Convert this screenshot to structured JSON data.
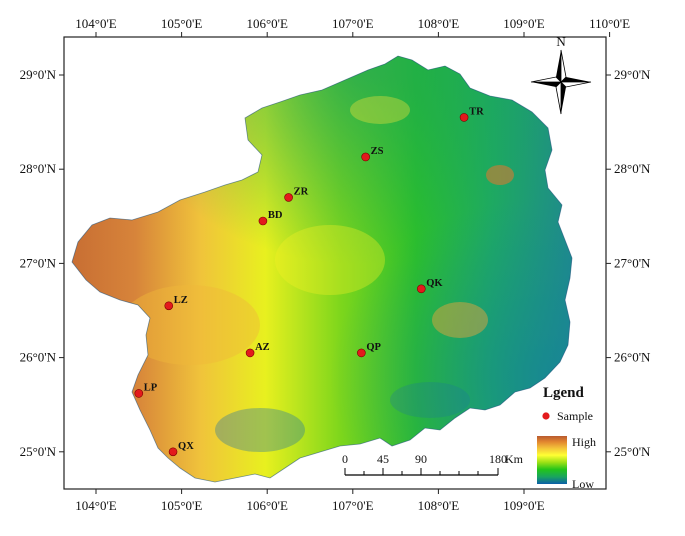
{
  "map": {
    "top_ticks": [
      "104°0'E",
      "105°0'E",
      "106°0'E",
      "107°0'E",
      "108°0'E",
      "109°0'E",
      "110°0'E"
    ],
    "bottom_ticks": [
      "104°0'E",
      "105°0'E",
      "106°0'E",
      "107°0'E",
      "108°0'E",
      "109°0'E"
    ],
    "left_ticks": [
      "29°0'N",
      "28°0'N",
      "27°0'N",
      "26°0'N",
      "25°0'N"
    ],
    "right_ticks": [
      "29°0'N",
      "28°0'N",
      "27°0'N",
      "26°0'N",
      "25°0'N"
    ]
  },
  "samples": [
    {
      "code": "TR",
      "lon": 108.3,
      "lat": 28.55
    },
    {
      "code": "ZS",
      "lon": 107.15,
      "lat": 28.13
    },
    {
      "code": "ZR",
      "lon": 106.25,
      "lat": 27.7
    },
    {
      "code": "BD",
      "lon": 105.95,
      "lat": 27.45
    },
    {
      "code": "LZ",
      "lon": 104.85,
      "lat": 26.55
    },
    {
      "code": "QK",
      "lon": 107.8,
      "lat": 26.73
    },
    {
      "code": "AZ",
      "lon": 105.8,
      "lat": 26.05
    },
    {
      "code": "QP",
      "lon": 107.1,
      "lat": 26.05
    },
    {
      "code": "LP",
      "lon": 104.5,
      "lat": 25.62
    },
    {
      "code": "QX",
      "lon": 104.9,
      "lat": 25.0
    }
  ],
  "scale_bar": {
    "labels": [
      "0",
      "45",
      "90",
      "180"
    ],
    "unit": "Km"
  },
  "compass": {
    "label": "N"
  },
  "legend": {
    "title": "Lgend",
    "sample_label": "Sample",
    "high_label": "High",
    "low_label": "Low",
    "sample_color": "#e31a1c",
    "ramp_colors": [
      "#0b5ea8",
      "#1aa55f",
      "#22c41a",
      "#9be015",
      "#ffff33",
      "#f3c13a",
      "#e2862f",
      "#b85a2f"
    ]
  }
}
